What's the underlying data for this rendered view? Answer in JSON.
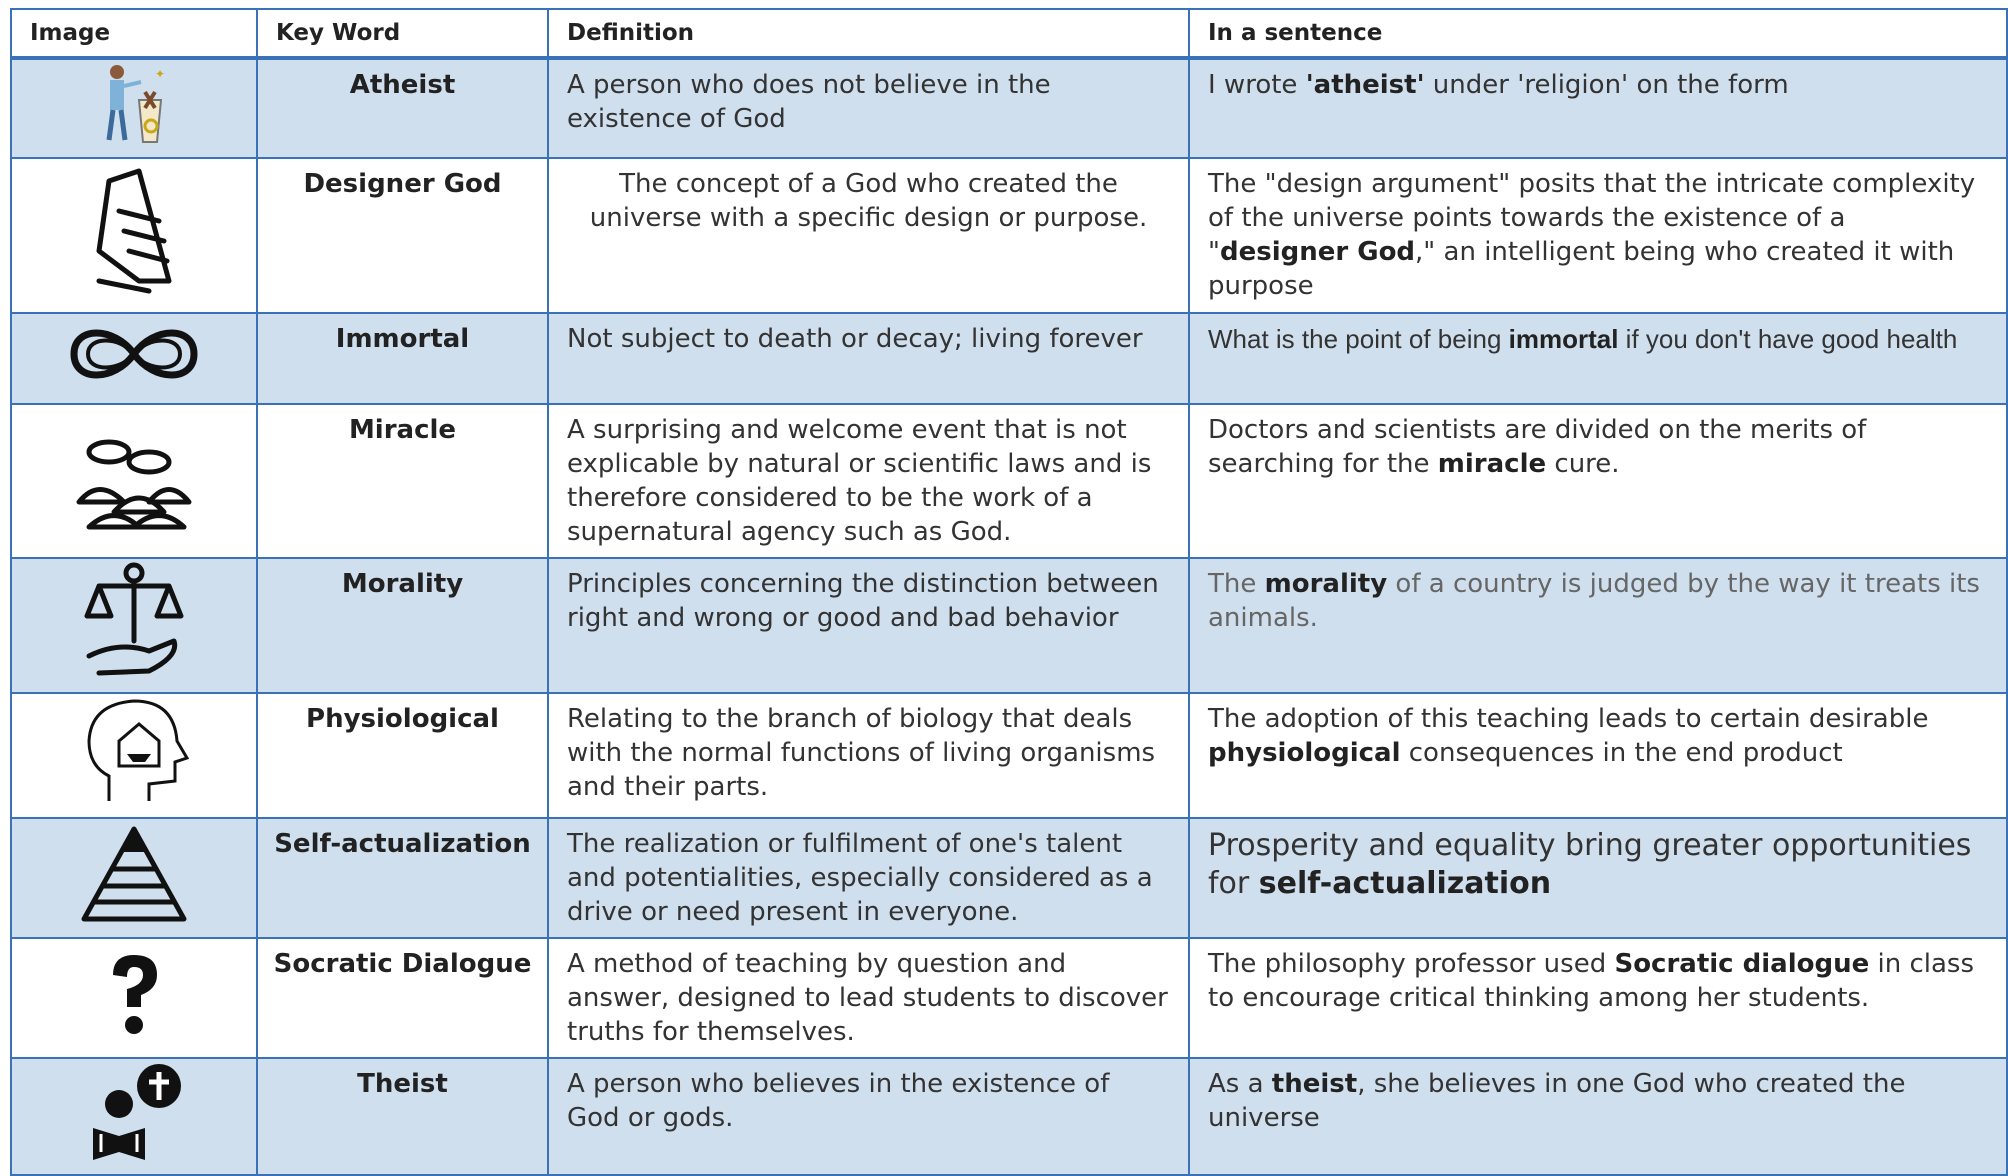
{
  "table": {
    "headers": [
      "Image",
      "Key Word",
      "Definition",
      "In a sentence"
    ],
    "rows": [
      {
        "keyword": "Atheist",
        "definition": "A person who does not believe in the existence of God",
        "sentence": [
          "I wrote ",
          {
            "b": "'atheist'"
          },
          " under 'religion' on the form"
        ]
      },
      {
        "keyword": "Designer God",
        "definition": "The concept of a God who created the universe with a specific design or purpose.",
        "sentence": [
          "The \"design argument\" posits that the intricate complexity of the universe points towards the existence of a \"",
          {
            "b": "designer God"
          },
          ",\" an intelligent being who created it with purpose"
        ]
      },
      {
        "keyword": "Immortal",
        "definition": "Not subject to death or decay; living forever",
        "sentence": [
          "What is the point of being ",
          {
            "b": "immortal"
          },
          " if you don't have good health"
        ]
      },
      {
        "keyword": "Miracle",
        "definition": "A surprising and welcome event that is not explicable by natural or scientific laws and is therefore considered to be the work of a supernatural agency such as God.",
        "sentence": [
          "Doctors and scientists are divided on the merits of searching for the ",
          {
            "b": "miracle"
          },
          " cure."
        ]
      },
      {
        "keyword": "Morality",
        "definition": "Principles concerning the distinction between right and wrong or good and bad behavior",
        "sentence": [
          "The ",
          {
            "b": "morality"
          },
          " of a country is judged by the way it treats its animals."
        ]
      },
      {
        "keyword": "Physiological",
        "definition": "Relating to the branch of biology that deals with the normal functions of living organisms and their parts.",
        "sentence": [
          "The adoption of this teaching leads to certain desirable ",
          {
            "b": "physiological"
          },
          " consequences in the end product"
        ]
      },
      {
        "keyword": "Self-actualization",
        "definition": "The realization or fulfilment of one's talent and potentialities, especially considered as a drive or need present in everyone.",
        "sentence": [
          "Prosperity and equality bring greater opportunities for ",
          {
            "b": "self-actualization"
          }
        ]
      },
      {
        "keyword": "Socratic Dialogue",
        "definition": "A method of teaching by question and answer, designed to lead students to discover truths for themselves.",
        "sentence": [
          "The philosophy professor used ",
          {
            "b": "Socratic dialogue"
          },
          " in class to encourage critical thinking among her students."
        ]
      },
      {
        "keyword": "Theist",
        "definition": "A person who believes in the existence of God or gods.",
        "sentence": [
          "As a ",
          {
            "b": "theist"
          },
          ", she believes in one God who created the universe"
        ]
      }
    ]
  }
}
